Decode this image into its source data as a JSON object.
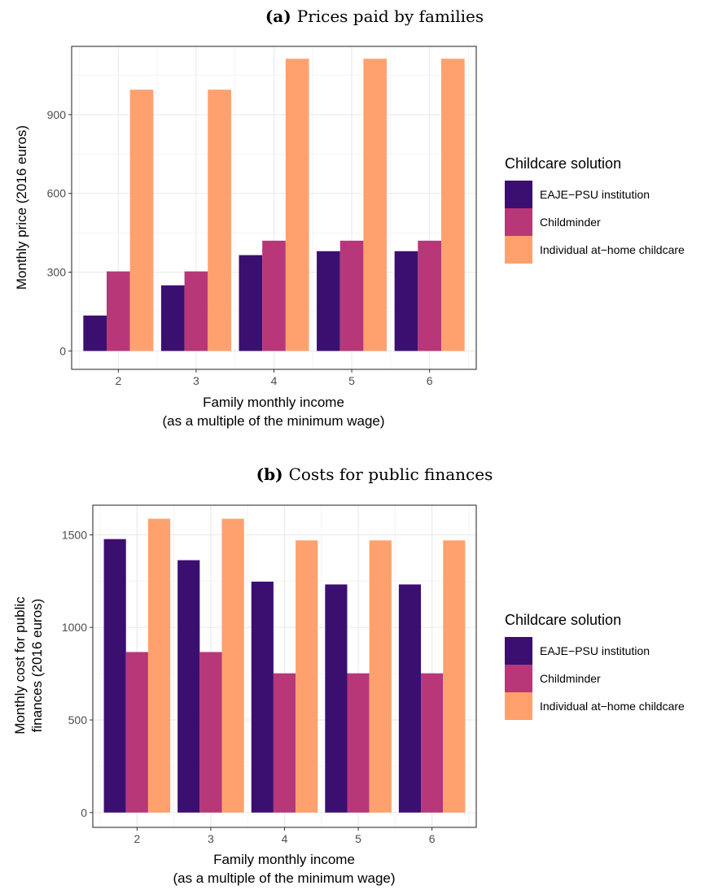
{
  "chart_data": [
    {
      "type": "bar",
      "title_tag": "(a)",
      "title": "Prices paid by families",
      "xlabel": [
        "Family monthly income",
        "(as a multiple of the minimum wage)"
      ],
      "ylabel": [
        "Monthly price (2016 euros)"
      ],
      "categories": [
        "2",
        "3",
        "4",
        "5",
        "6"
      ],
      "ylim": [
        -70,
        1160
      ],
      "yticks": [
        0,
        300,
        600,
        900
      ],
      "grid": true,
      "legend_position": "right",
      "legend_title": "Childcare solution",
      "series": [
        {
          "name": "EAJE−PSU institution",
          "color": "#3b0f70",
          "values": [
            135,
            250,
            365,
            380,
            380
          ]
        },
        {
          "name": "Childminder",
          "color": "#b73779",
          "values": [
            303,
            303,
            420,
            420,
            420
          ]
        },
        {
          "name": "Individual at−home childcare",
          "color": "#fea16e",
          "values": [
            995,
            995,
            1113,
            1113,
            1113
          ]
        }
      ]
    },
    {
      "type": "bar",
      "title_tag": "(b)",
      "title": "Costs for public finances",
      "xlabel": [
        "Family monthly income",
        "(as a multiple of the minimum wage)"
      ],
      "ylabel": [
        "Monthly cost for public",
        "finances (2016 euros)"
      ],
      "categories": [
        "2",
        "3",
        "4",
        "5",
        "6"
      ],
      "ylim": [
        -80,
        1660
      ],
      "yticks": [
        0,
        500,
        1000,
        1500
      ],
      "grid": true,
      "legend_position": "right",
      "legend_title": "Childcare solution",
      "series": [
        {
          "name": "EAJE−PSU institution",
          "color": "#3b0f70",
          "values": [
            1477,
            1363,
            1247,
            1232,
            1232
          ]
        },
        {
          "name": "Childminder",
          "color": "#b73779",
          "values": [
            867,
            867,
            752,
            752,
            752
          ]
        },
        {
          "name": "Individual at−home childcare",
          "color": "#fea16e",
          "values": [
            1587,
            1587,
            1470,
            1470,
            1470
          ]
        }
      ]
    }
  ]
}
